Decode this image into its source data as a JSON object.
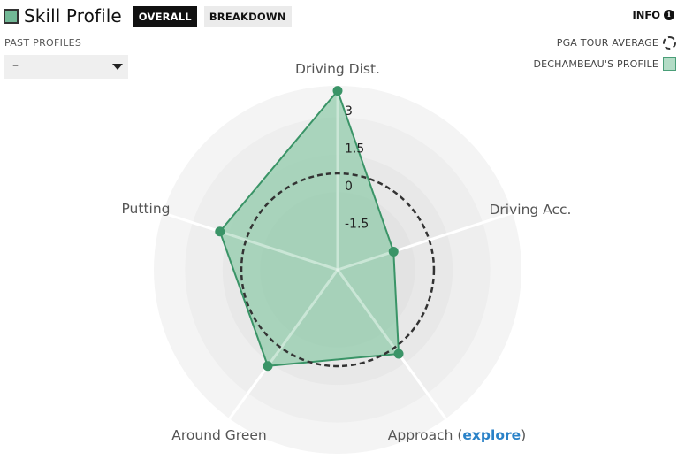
{
  "header": {
    "title": "Skill Profile",
    "tabs": [
      {
        "label": "OVERALL",
        "active": true
      },
      {
        "label": "BREAKDOWN",
        "active": false
      }
    ],
    "info_label": "INFO"
  },
  "past_profiles": {
    "label": "PAST PROFILES",
    "selected": "–"
  },
  "legend": {
    "average_label": "PGA TOUR AVERAGE",
    "profile_label": "DECHAMBEAU'S PROFILE"
  },
  "colors": {
    "profile_fill": "#8fcaa9",
    "profile_stroke": "#3a9467",
    "average_ring": "#333333"
  },
  "chart_data": {
    "type": "radar",
    "axes": [
      "Driving Dist.",
      "Driving Acc.",
      "Approach",
      "Around Green",
      "Putting"
    ],
    "explore_axis": "Approach",
    "explore_prefix": "Approach (",
    "explore_link": "explore",
    "explore_suffix": ")",
    "series": [
      {
        "name": "DECHAMBEAU'S PROFILE",
        "values": [
          3.3,
          -1.5,
          0.3,
          0.9,
          1.1
        ]
      },
      {
        "name": "PGA TOUR AVERAGE",
        "values": [
          0,
          0,
          0,
          0,
          0
        ]
      }
    ],
    "ticks": [
      "3",
      "1.5",
      "0",
      "-1.5"
    ],
    "tick_values": [
      3,
      1.5,
      0,
      -1.5
    ],
    "range": [
      -3.85,
      3.5
    ]
  }
}
